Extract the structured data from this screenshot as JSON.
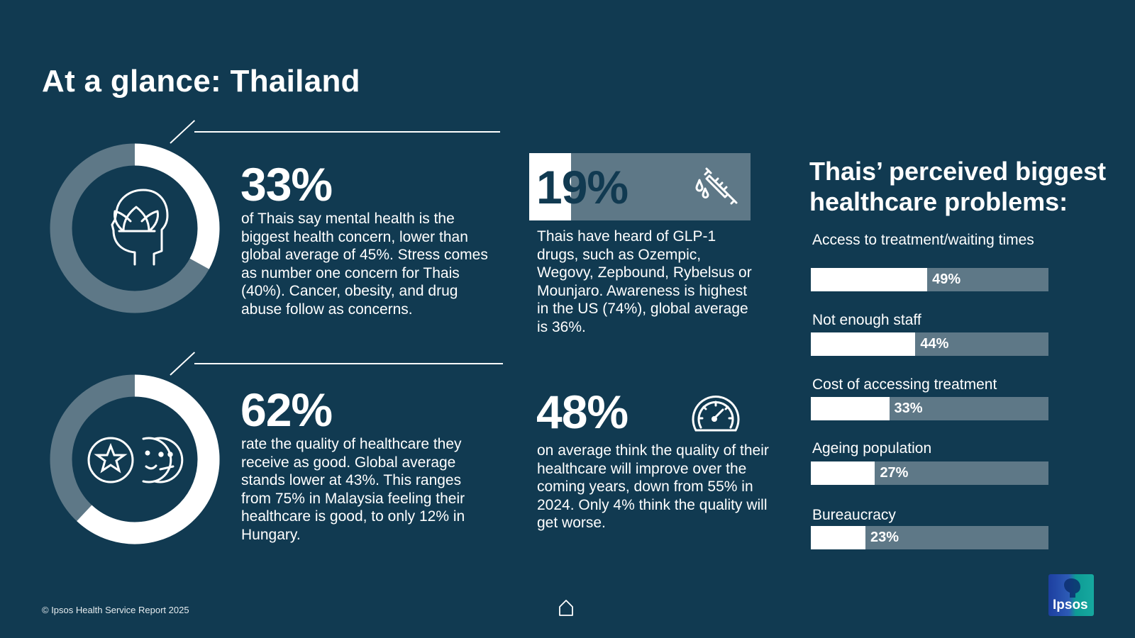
{
  "page": {
    "title": "At a glance: Thailand",
    "footer": "© Ipsos Health Service Report 2025",
    "logo_text": "Ipsos"
  },
  "stats": {
    "mental_health": {
      "value": "33%",
      "fraction": 0.33,
      "icon": "lotus-head-icon",
      "text": "of Thais say mental health is the biggest health concern, lower than global average of 45%. Stress comes as number one concern for Thais (40%). Cancer, obesity, and drug abuse follow as concerns."
    },
    "quality_good": {
      "value": "62%",
      "fraction": 0.62,
      "icon": "rating-faces-icon",
      "text": "rate the quality of healthcare they receive as good. Global average stands lower at 43%. This ranges from 75% in Malaysia feeling their healthcare is good, to only 12% in Hungary."
    },
    "glp1": {
      "value": "19%",
      "fraction": 0.19,
      "icon": "syringe-icon",
      "text": "Thais have heard of GLP-1 drugs, such as Ozempic, Wegovy, Zepbound, Rybelsus or Mounjaro. Awareness is highest in the US (74%), global average is 36%."
    },
    "improve": {
      "value": "48%",
      "icon": "speedometer-icon",
      "text": "on average think the quality of their healthcare will improve over the coming years, down from 55% in 2024. Only 4% think the quality will get worse."
    }
  },
  "colors": {
    "background": "#113a51",
    "track": "#5e7887",
    "fill": "#ffffff"
  },
  "chart_data": {
    "type": "bar",
    "title": "Thais’ perceived biggest healthcare problems:",
    "categories": [
      "Access to treatment/waiting times",
      "Not enough staff",
      "Cost of accessing treatment",
      "Ageing population",
      "Bureaucracy"
    ],
    "values": [
      49,
      44,
      33,
      27,
      23
    ],
    "value_labels": [
      "49%",
      "44%",
      "33%",
      "27%",
      "23%"
    ],
    "ylim": [
      0,
      100
    ],
    "grid": false
  }
}
